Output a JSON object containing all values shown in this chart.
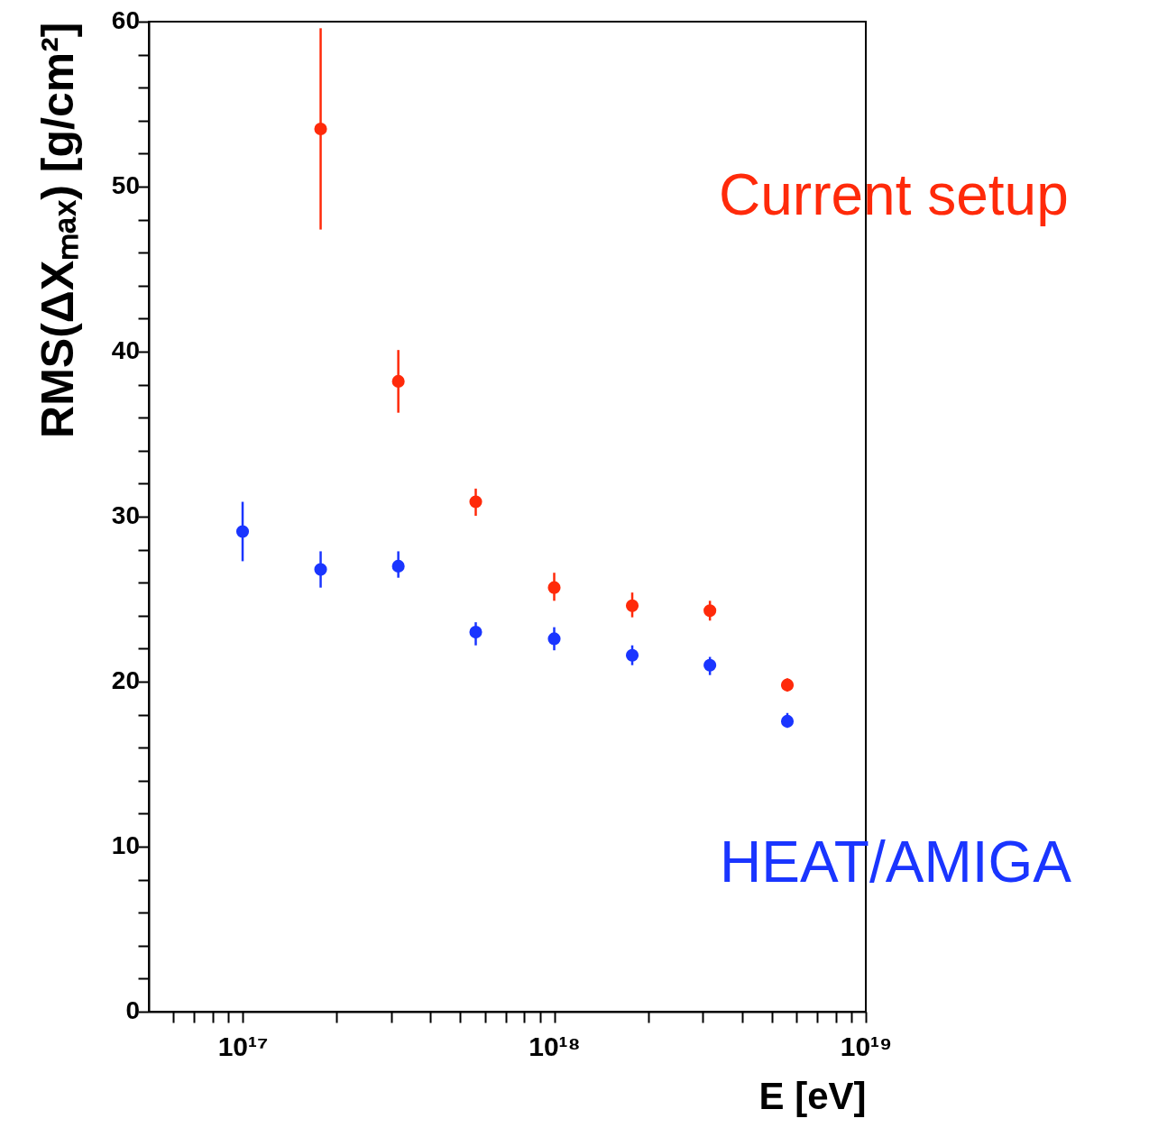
{
  "chart_data": {
    "type": "scatter",
    "xlabel": "E [eV]",
    "ylabel": "RMS(ΔXₘₐₓ) [g/cm²]",
    "log": "x",
    "marker": "circle",
    "grid": false,
    "xlim": [
      5e+16,
      1e+19
    ],
    "ylim": [
      0,
      60
    ],
    "xticks": [
      {
        "value": 6e+16,
        "label": null
      },
      {
        "value": 7e+16,
        "label": null
      },
      {
        "value": 8e+16,
        "label": null
      },
      {
        "value": 9e+16,
        "label": null
      },
      {
        "value": 1e+17,
        "label": "10¹⁷"
      },
      {
        "value": 2e+17,
        "label": null
      },
      {
        "value": 3e+17,
        "label": null
      },
      {
        "value": 4e+17,
        "label": null
      },
      {
        "value": 5e+17,
        "label": null
      },
      {
        "value": 6e+17,
        "label": null
      },
      {
        "value": 7e+17,
        "label": null
      },
      {
        "value": 8e+17,
        "label": null
      },
      {
        "value": 9e+17,
        "label": null
      },
      {
        "value": 1e+18,
        "label": "10¹⁸"
      },
      {
        "value": 2e+18,
        "label": null
      },
      {
        "value": 3e+18,
        "label": null
      },
      {
        "value": 4e+18,
        "label": null
      },
      {
        "value": 5e+18,
        "label": null
      },
      {
        "value": 6e+18,
        "label": null
      },
      {
        "value": 7e+18,
        "label": null
      },
      {
        "value": 8e+18,
        "label": null
      },
      {
        "value": 9e+18,
        "label": null
      },
      {
        "value": 1e+19,
        "label": "10¹⁹"
      }
    ],
    "yticks": [
      0,
      {
        "value": 2,
        "label": null
      },
      {
        "value": 4,
        "label": null
      },
      {
        "value": 6,
        "label": null
      },
      {
        "value": 8,
        "label": null
      },
      10,
      {
        "value": 12,
        "label": null
      },
      {
        "value": 14,
        "label": null
      },
      {
        "value": 16,
        "label": null
      },
      {
        "value": 18,
        "label": null
      },
      20,
      {
        "value": 22,
        "label": null
      },
      {
        "value": 24,
        "label": null
      },
      {
        "value": 26,
        "label": null
      },
      {
        "value": 28,
        "label": null
      },
      30,
      {
        "value": 32,
        "label": null
      },
      {
        "value": 34,
        "label": null
      },
      {
        "value": 36,
        "label": null
      },
      {
        "value": 38,
        "label": null
      },
      40,
      {
        "value": 42,
        "label": null
      },
      {
        "value": 44,
        "label": null
      },
      {
        "value": 46,
        "label": null
      },
      {
        "value": 48,
        "label": null
      },
      50,
      {
        "value": 52,
        "label": null
      },
      {
        "value": 54,
        "label": null
      },
      {
        "value": 56,
        "label": null
      },
      {
        "value": 58,
        "label": null
      },
      60
    ],
    "series": [
      {
        "name": "Current setup",
        "color": "#ff2a0a",
        "x": [
          1.78e+17,
          3.16e+17,
          5.6e+17,
          1e+18,
          1.78e+18,
          3.16e+18,
          5.6e+18
        ],
        "values": [
          53.5,
          38.2,
          30.9,
          25.7,
          24.6,
          24.3,
          19.8
        ],
        "errors": [
          [
            47.4,
            59.6
          ],
          [
            36.3,
            40.1
          ],
          [
            30.05,
            31.7
          ],
          [
            24.9,
            26.6
          ],
          [
            23.9,
            25.4
          ],
          [
            23.7,
            24.9
          ],
          [
            19.4,
            20.2
          ]
        ]
      },
      {
        "name": "HEAT/AMIGA",
        "color": "#1a35ff",
        "x": [
          1e+17,
          1.78e+17,
          3.16e+17,
          5.6e+17,
          1e+18,
          1.78e+18,
          3.16e+18,
          5.6e+18
        ],
        "values": [
          29.1,
          26.8,
          27.0,
          23.0,
          22.6,
          21.6,
          21.0,
          17.6
        ],
        "errors": [
          [
            27.3,
            30.9
          ],
          [
            25.7,
            27.9
          ],
          [
            26.3,
            27.9
          ],
          [
            22.2,
            23.6
          ],
          [
            21.9,
            23.3
          ],
          [
            21.0,
            22.2
          ],
          [
            20.4,
            21.5
          ],
          [
            17.2,
            18.1
          ]
        ]
      }
    ]
  }
}
